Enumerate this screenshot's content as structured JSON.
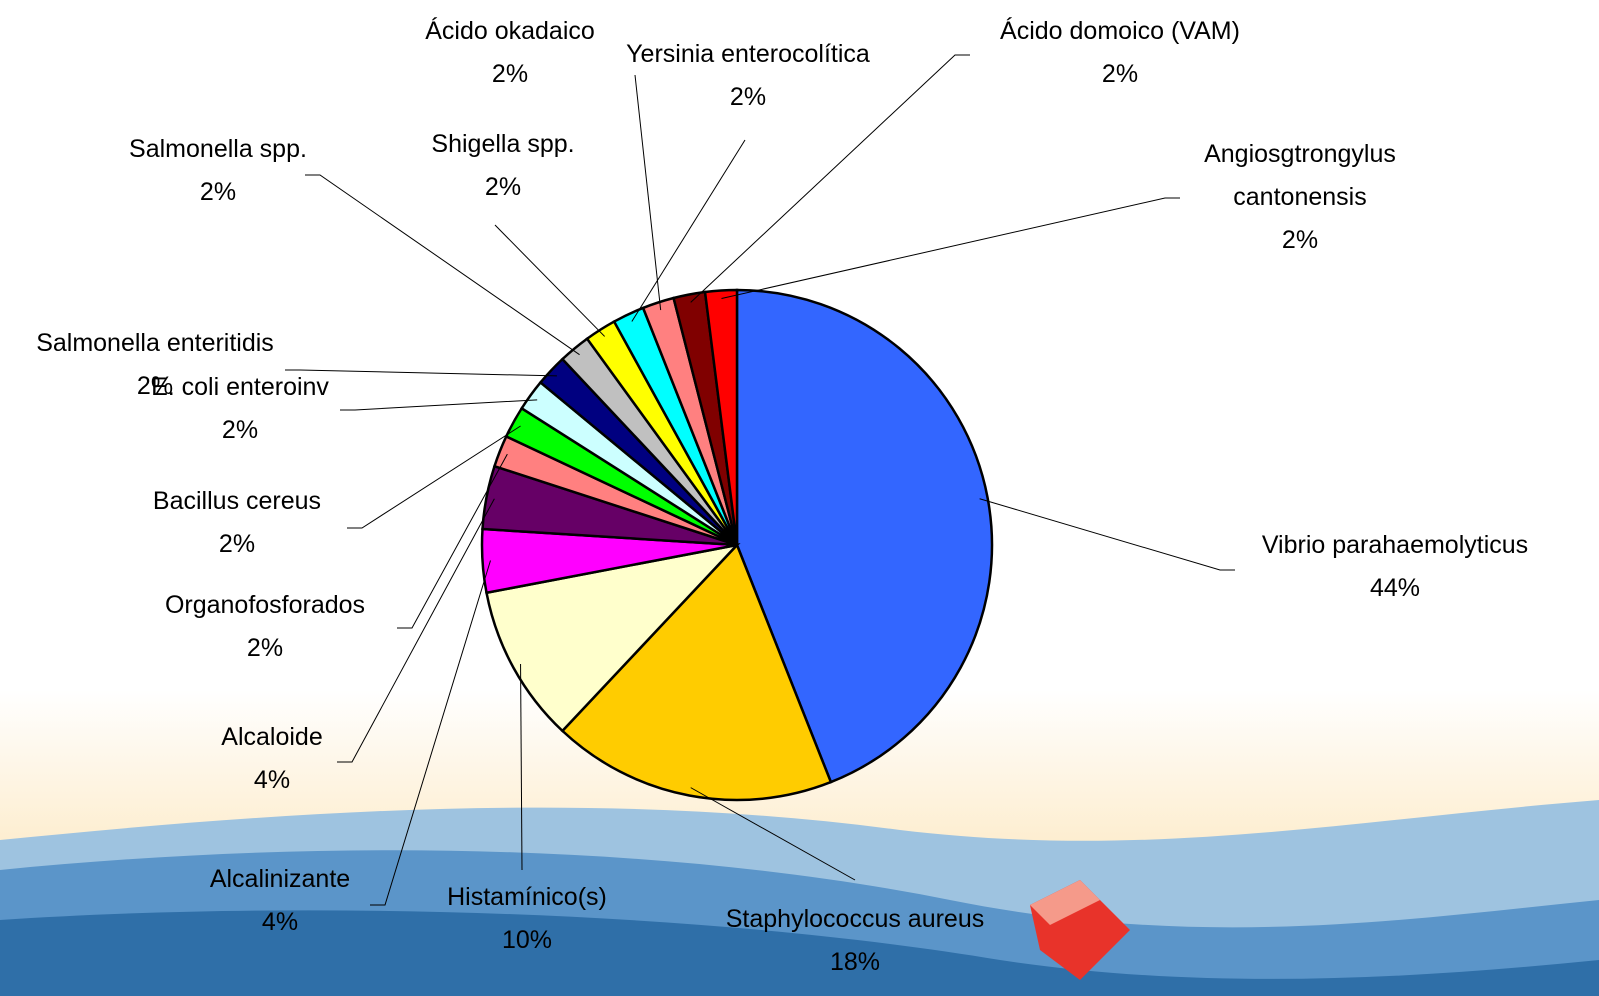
{
  "chart_data": {
    "type": "pie",
    "categories": [
      "Vibrio parahaemolyticus",
      "Staphylococcus aureus",
      "Histamínico(s)",
      "Alcalinizante",
      "Alcaloide",
      "Organofosforados",
      "Bacillus cereus",
      "E. coli enteroinv",
      "Salmonella enteritidis",
      "Salmonella spp.",
      "Shigella spp.",
      "Yersinia enterocolítica",
      "Ácido okadaico",
      "Ácido domoico (VAM)",
      "Angiosgtrongylus cantonensis"
    ],
    "values": [
      44,
      18,
      10,
      4,
      4,
      2,
      2,
      2,
      2,
      2,
      2,
      2,
      2,
      2,
      2
    ],
    "value_labels": [
      "44%",
      "18%",
      "10%",
      "4%",
      "4%",
      "2%",
      "2%",
      "2%",
      "2%",
      "2%",
      "2%",
      "2%",
      "2%",
      "2%",
      "2%"
    ],
    "colors": [
      "#3366ff",
      "#ffcc00",
      "#ffffcc",
      "#ff00ff",
      "#660066",
      "#ff8080",
      "#00ff00",
      "#ccffff",
      "#000080",
      "#c0c0c0",
      "#ffff00",
      "#00ffff",
      "#ff8080",
      "#800000",
      "#ff0000"
    ]
  }
}
